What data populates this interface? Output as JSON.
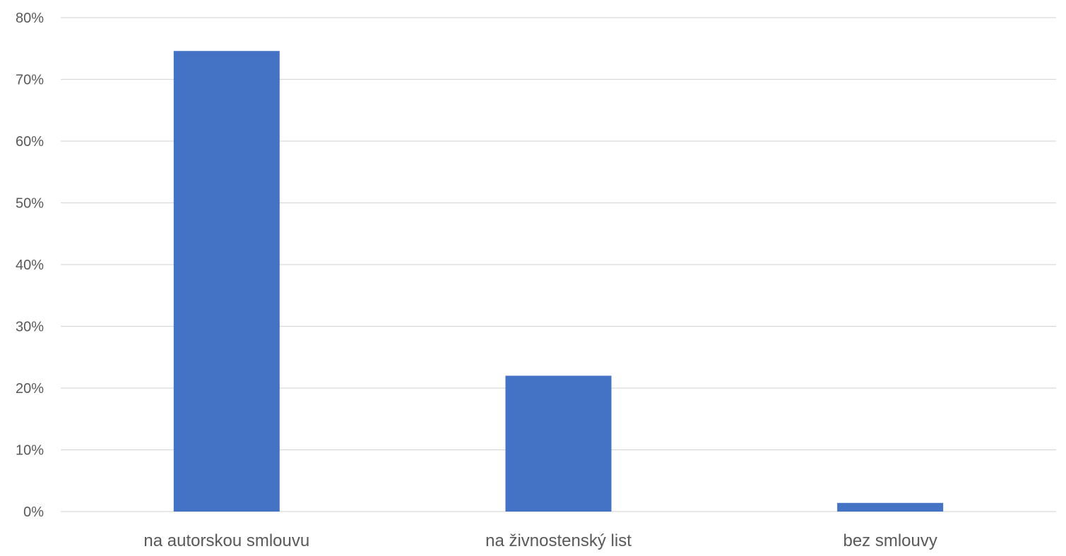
{
  "chart_data": {
    "type": "bar",
    "title": "",
    "xlabel": "",
    "ylabel": "",
    "categories": [
      "na autorskou smlouvu",
      "na živnostenský list",
      "bez smlouvy"
    ],
    "series": [
      {
        "values": [
          74.6,
          22.0,
          1.4
        ]
      }
    ],
    "ylim": [
      0,
      80
    ],
    "yticks": [
      0,
      10,
      20,
      30,
      40,
      50,
      60,
      70,
      80
    ],
    "ytick_labels": [
      "0%",
      "10%",
      "20%",
      "30%",
      "40%",
      "50%",
      "60%",
      "70%",
      "80%"
    ],
    "grid": true,
    "legend": "none",
    "colors": {
      "bar": "#4472C4",
      "grid": "#D9D9D9",
      "text": "#595959"
    }
  }
}
